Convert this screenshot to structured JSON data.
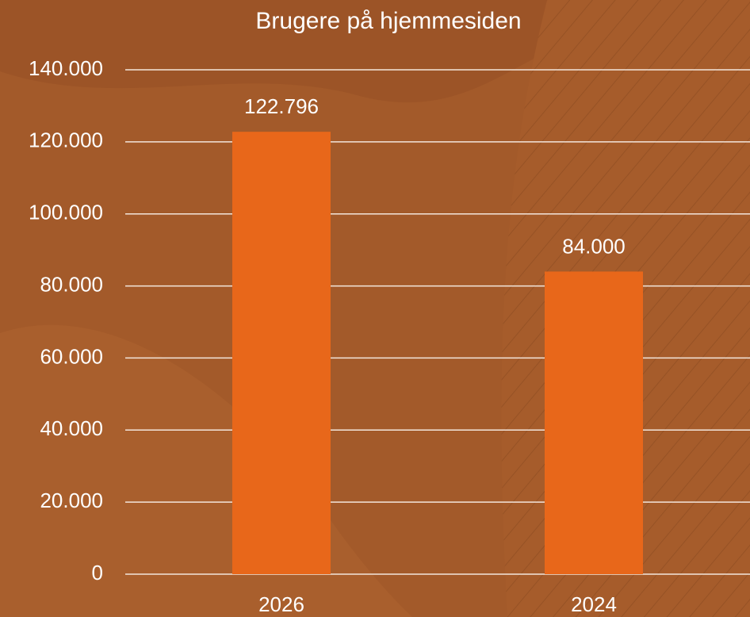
{
  "chart_data": {
    "type": "bar",
    "title": "Brugere på hjemmesiden",
    "categories": [
      "2026",
      "2024"
    ],
    "values": [
      122796,
      84000
    ],
    "value_labels": [
      "122.796",
      "84.000"
    ],
    "color": "#e8671a",
    "ylim": [
      0,
      140000
    ],
    "yticks": [
      0,
      {
        "value": 20000,
        "label": "20.000"
      },
      {
        "value": 40000,
        "label": "40.000"
      },
      {
        "value": 60000,
        "label": "60.000"
      },
      {
        "value": 80000,
        "label": "80.000"
      },
      {
        "value": 100000,
        "label": "100.000"
      },
      {
        "value": 120000,
        "label": "120.000"
      },
      {
        "value": 140000,
        "label": "140.000"
      }
    ],
    "grid": true
  }
}
